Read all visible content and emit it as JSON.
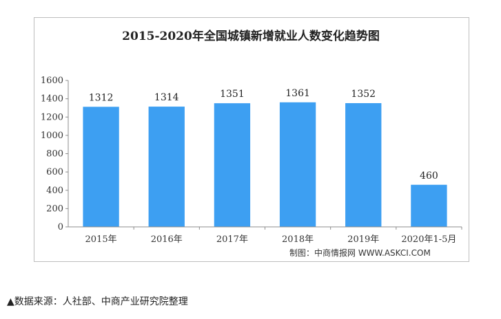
{
  "chart_data": {
    "type": "bar",
    "title": "2015-2020年全国城镇新增就业人数变化趋势图",
    "categories": [
      "2015年",
      "2016年",
      "2017年",
      "2018年",
      "2019年",
      "2020年1-5月"
    ],
    "values": [
      1312,
      1314,
      1351,
      1361,
      1352,
      460
    ],
    "data_labels": [
      "1312",
      "1314",
      "1351",
      "1361",
      "1352",
      "460"
    ],
    "ylim": [
      0,
      1600
    ],
    "yticks": [
      0,
      200,
      400,
      600,
      800,
      1000,
      1200,
      1400,
      1600
    ],
    "grid": false,
    "legend": "none",
    "bar_color": "#3d9ff2"
  },
  "credit": "制图：中商情报网 WWW.ASKCI.COM",
  "source": "▲数据来源：人社部、中商产业研究院整理"
}
